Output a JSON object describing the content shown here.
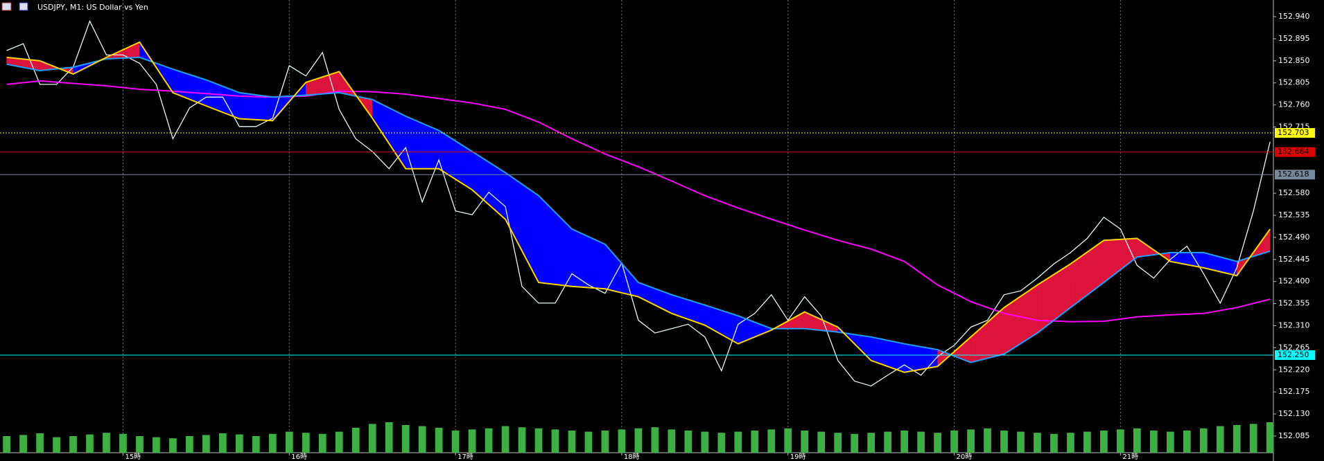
{
  "chart_data": {
    "type": "line",
    "title": "USDJPY, M1:  US Dollar vs Yen",
    "xlim": [
      14.26,
      21.92
    ],
    "ylim": [
      152.051,
      152.974
    ],
    "xticks": [
      {
        "value": 15,
        "label": "15時"
      },
      {
        "value": 16,
        "label": "16時"
      },
      {
        "value": 17,
        "label": "17時"
      },
      {
        "value": 18,
        "label": "18時"
      },
      {
        "value": 19,
        "label": "19時"
      },
      {
        "value": 20,
        "label": "20時"
      },
      {
        "value": 21,
        "label": "21時"
      }
    ],
    "yticks": [
      {
        "value": 152.94,
        "label": "152.940"
      },
      152.895,
      {
        "value": 152.85,
        "label": "152.850"
      },
      152.805,
      {
        "value": 152.76,
        "label": "152.760"
      },
      152.715,
      {
        "value": 152.58,
        "label": "152.580"
      },
      152.535,
      {
        "value": 152.49,
        "label": "152.490"
      },
      152.445,
      {
        "value": 152.4,
        "label": "152.400"
      },
      152.355,
      {
        "value": 152.31,
        "label": "152.310"
      },
      152.265,
      {
        "value": 152.22,
        "label": "152.220"
      },
      152.175,
      {
        "value": 152.13,
        "label": "152.130"
      },
      152.085
    ],
    "x": [
      14.3,
      14.4,
      14.5,
      14.6,
      14.7,
      14.8,
      14.9,
      15.0,
      15.1,
      15.2,
      15.3,
      15.4,
      15.5,
      15.6,
      15.7,
      15.8,
      15.9,
      16.0,
      16.1,
      16.2,
      16.3,
      16.4,
      16.5,
      16.6,
      16.7,
      16.8,
      16.9,
      17.0,
      17.1,
      17.2,
      17.3,
      17.4,
      17.5,
      17.6,
      17.7,
      17.8,
      17.9,
      18.0,
      18.1,
      18.2,
      18.3,
      18.4,
      18.5,
      18.6,
      18.7,
      18.8,
      18.9,
      19.0,
      19.1,
      19.2,
      19.3,
      19.4,
      19.5,
      19.6,
      19.7,
      19.8,
      19.9,
      20.0,
      20.1,
      20.2,
      20.3,
      20.4,
      20.5,
      20.6,
      20.7,
      20.8,
      20.9,
      21.0,
      21.1,
      21.2,
      21.3,
      21.4,
      21.5,
      21.6,
      21.7,
      21.8,
      21.9
    ],
    "series": [
      {
        "color": "#e6fafa",
        "values": [
          152.871,
          152.885,
          152.802,
          152.802,
          152.837,
          152.931,
          152.862,
          152.862,
          152.845,
          152.802,
          152.691,
          152.754,
          152.776,
          152.776,
          152.716,
          152.716,
          152.733,
          152.84,
          152.819,
          152.867,
          152.751,
          152.691,
          152.665,
          152.63,
          152.673,
          152.562,
          152.648,
          152.544,
          152.536,
          152.582,
          152.553,
          152.39,
          152.356,
          152.356,
          152.416,
          152.393,
          152.376,
          152.438,
          152.321,
          152.295,
          152.304,
          152.313,
          152.287,
          152.218,
          152.313,
          152.335,
          152.373,
          152.321,
          152.369,
          152.33,
          152.239,
          152.197,
          152.187,
          152.209,
          152.23,
          152.209,
          152.247,
          152.27,
          152.307,
          152.321,
          152.373,
          152.381,
          152.407,
          152.436,
          152.459,
          152.488,
          152.531,
          152.507,
          152.433,
          152.407,
          152.445,
          152.472,
          152.416,
          152.356,
          152.428,
          152.544,
          152.685
        ]
      },
      {
        "color": "#ffd700",
        "x": [
          14.3,
          14.5,
          14.7,
          14.9,
          15.1,
          15.3,
          15.5,
          15.7,
          15.9,
          16.1,
          16.3,
          16.5,
          16.7,
          16.9,
          17.1,
          17.3,
          17.5,
          17.7,
          17.9,
          18.1,
          18.3,
          18.5,
          18.7,
          18.9,
          19.1,
          19.3,
          19.5,
          19.7,
          19.9,
          20.1,
          20.3,
          20.5,
          20.7,
          20.9,
          21.1,
          21.3,
          21.5,
          21.7,
          21.9
        ],
        "values": [
          152.857,
          152.85,
          152.823,
          152.857,
          152.888,
          152.785,
          152.758,
          152.732,
          152.728,
          152.806,
          152.828,
          152.733,
          152.63,
          152.63,
          152.587,
          152.527,
          152.398,
          152.39,
          152.385,
          152.369,
          152.335,
          152.311,
          152.273,
          152.301,
          152.338,
          152.307,
          152.239,
          152.215,
          152.227,
          152.287,
          152.347,
          152.393,
          152.436,
          152.484,
          152.488,
          152.441,
          152.428,
          152.412,
          152.507
        ]
      },
      {
        "color": "#1ea0ff",
        "x": [
          14.3,
          14.5,
          14.7,
          14.9,
          15.1,
          15.3,
          15.5,
          15.7,
          15.9,
          16.1,
          16.3,
          16.5,
          16.7,
          16.9,
          17.1,
          17.3,
          17.5,
          17.7,
          17.9,
          18.1,
          18.3,
          18.5,
          18.7,
          18.9,
          19.1,
          19.3,
          19.5,
          19.7,
          19.9,
          20.1,
          20.3,
          20.5,
          20.7,
          20.9,
          21.1,
          21.3,
          21.5,
          21.7,
          21.9
        ],
        "values": [
          152.843,
          152.83,
          152.837,
          152.854,
          152.857,
          152.833,
          152.811,
          152.785,
          152.776,
          152.78,
          152.785,
          152.771,
          152.737,
          152.708,
          152.665,
          152.622,
          152.575,
          152.507,
          152.476,
          152.398,
          152.373,
          152.352,
          152.33,
          152.304,
          152.304,
          152.297,
          152.287,
          152.273,
          152.261,
          152.235,
          152.252,
          152.295,
          152.347,
          152.398,
          152.45,
          152.459,
          152.459,
          152.441,
          152.462
        ]
      },
      {
        "color": "#ff00ff",
        "x": [
          14.3,
          14.5,
          14.7,
          14.9,
          15.1,
          15.3,
          15.5,
          15.7,
          15.9,
          16.1,
          16.3,
          16.5,
          16.7,
          16.9,
          17.1,
          17.3,
          17.5,
          17.7,
          17.9,
          18.1,
          18.3,
          18.5,
          18.7,
          18.9,
          19.1,
          19.3,
          19.5,
          19.7,
          19.9,
          20.1,
          20.3,
          20.5,
          20.7,
          20.9,
          21.1,
          21.3,
          21.5,
          21.7,
          21.9
        ],
        "values": [
          152.802,
          152.809,
          152.804,
          152.799,
          152.792,
          152.788,
          152.783,
          152.778,
          152.776,
          152.778,
          152.788,
          152.787,
          152.782,
          152.773,
          152.764,
          152.751,
          152.725,
          152.691,
          152.66,
          152.634,
          152.605,
          152.575,
          152.55,
          152.527,
          152.505,
          152.484,
          152.466,
          152.441,
          152.393,
          152.359,
          152.335,
          152.321,
          152.318,
          152.319,
          152.328,
          152.332,
          152.335,
          152.347,
          152.364
        ]
      }
    ],
    "fill_between": [
      1,
      2
    ],
    "fill_colors": [
      "#dc143c",
      "#0000ff"
    ],
    "volume": [
      30,
      32,
      35,
      28,
      30,
      33,
      36,
      34,
      30,
      28,
      26,
      30,
      32,
      35,
      33,
      30,
      34,
      38,
      36,
      34,
      38,
      45,
      52,
      55,
      50,
      48,
      45,
      40,
      42,
      44,
      48,
      46,
      44,
      42,
      40,
      38,
      40,
      42,
      44,
      46,
      42,
      40,
      38,
      36,
      38,
      40,
      42,
      44,
      40,
      38,
      36,
      34,
      36,
      38,
      40,
      38,
      36,
      40,
      42,
      44,
      40,
      38,
      36,
      34,
      36,
      38,
      40,
      42,
      44,
      40,
      38,
      40,
      44,
      48,
      50,
      52,
      55
    ],
    "volume_color": "#3cb043",
    "vlim": [
      0,
      100
    ],
    "hlines": [
      {
        "value": 152.703,
        "color": "#ffff00",
        "style": "dotted"
      },
      {
        "value": 152.664,
        "color": "#e00000",
        "style": "solid"
      },
      {
        "value": 152.618,
        "color": "#778899",
        "style": "solid"
      },
      {
        "value": {
          "value": 152.25,
          "label": "152.250"
        },
        "color": "#00ffff",
        "style": "solid"
      }
    ]
  }
}
